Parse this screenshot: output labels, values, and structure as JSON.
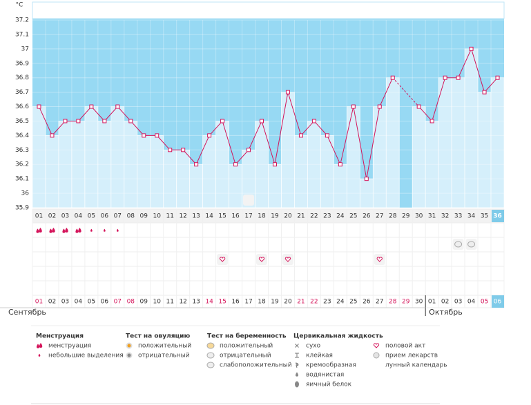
{
  "chart_data": {
    "type": "line",
    "y_unit": "°C",
    "categories": [
      "01",
      "02",
      "03",
      "04",
      "05",
      "06",
      "07",
      "08",
      "09",
      "10",
      "11",
      "12",
      "13",
      "14",
      "15",
      "16",
      "17",
      "18",
      "19",
      "20",
      "21",
      "22",
      "23",
      "24",
      "25",
      "26",
      "27",
      "28",
      "29",
      "30",
      "31",
      "32",
      "33",
      "34",
      "35",
      "36"
    ],
    "series": [
      {
        "name": "temperature",
        "color": "#d4145a",
        "values": [
          36.6,
          36.4,
          36.5,
          36.5,
          36.6,
          36.5,
          36.6,
          36.5,
          36.4,
          36.4,
          36.3,
          36.3,
          36.2,
          36.4,
          36.5,
          36.2,
          36.3,
          36.5,
          36.2,
          36.7,
          36.4,
          36.5,
          36.4,
          36.2,
          36.6,
          36.1,
          36.6,
          36.8,
          null,
          36.6,
          36.5,
          36.8,
          36.8,
          37,
          36.7,
          36.8
        ]
      }
    ],
    "ylim": [
      35.9,
      37.2
    ],
    "yticks": [
      35.9,
      36,
      36.1,
      36.2,
      36.3,
      36.4,
      36.5,
      36.6,
      36.7,
      36.8,
      36.9,
      37,
      37.1,
      37.2
    ],
    "grid": true,
    "bar_color": "#d5effb",
    "background_color": "#97d9f3",
    "highlight_last": true,
    "dates": [
      "01",
      "02",
      "03",
      "04",
      "05",
      "06",
      "07",
      "08",
      "09",
      "10",
      "11",
      "12",
      "13",
      "14",
      "15",
      "16",
      "17",
      "18",
      "19",
      "20",
      "21",
      "22",
      "23",
      "24",
      "25",
      "26",
      "27",
      "28",
      "29",
      "30",
      "01",
      "02",
      "03",
      "04",
      "05",
      "06"
    ],
    "date_colors": [
      "#d4145a",
      "#333",
      "#333",
      "#333",
      "#333",
      "#333",
      "#d4145a",
      "#d4145a",
      "#333",
      "#333",
      "#333",
      "#333",
      "#333",
      "#d4145a",
      "#d4145a",
      "#333",
      "#333",
      "#333",
      "#333",
      "#333",
      "#d4145a",
      "#d4145a",
      "#333",
      "#333",
      "#333",
      "#333",
      "#333",
      "#d4145a",
      "#d4145a",
      "#333",
      "#333",
      "#333",
      "#333",
      "#333",
      "#d4145a",
      "#d4145a"
    ],
    "months": [
      "Сентябрь",
      "Октябрь"
    ],
    "rows": {
      "menstruation": [
        "heavy",
        "heavy",
        "heavy",
        "heavy",
        "light",
        "light",
        "light",
        null,
        null,
        null,
        null,
        null,
        null,
        null,
        null,
        null,
        null,
        null,
        null,
        null,
        null,
        null,
        null,
        null,
        null,
        null,
        null,
        null,
        null,
        null,
        null,
        null,
        null,
        null,
        null,
        null
      ],
      "pregnancy": [
        null,
        null,
        null,
        null,
        null,
        null,
        null,
        null,
        null,
        null,
        null,
        null,
        null,
        null,
        null,
        null,
        null,
        null,
        null,
        null,
        null,
        null,
        null,
        null,
        null,
        null,
        null,
        null,
        null,
        null,
        null,
        null,
        "weak",
        "weak",
        null,
        null
      ],
      "sex": [
        null,
        null,
        null,
        null,
        null,
        null,
        null,
        null,
        null,
        null,
        null,
        null,
        null,
        null,
        "heart",
        null,
        null,
        "heart",
        null,
        "heart",
        null,
        null,
        null,
        null,
        null,
        null,
        "heart",
        null,
        null,
        null,
        null,
        null,
        null,
        null,
        null,
        null
      ],
      "moon": [
        null,
        null,
        null,
        null,
        null,
        null,
        null,
        null,
        null,
        null,
        null,
        null,
        null,
        null,
        null,
        null,
        "moon",
        null,
        null,
        null,
        null,
        null,
        null,
        null,
        null,
        null,
        null,
        null,
        null,
        null,
        null,
        null,
        null,
        null,
        null,
        null
      ]
    }
  },
  "legend": [
    {
      "title": "Менструация",
      "items": [
        {
          "label": "менструация",
          "icon": "heavy"
        },
        {
          "label": "небольшие выделения",
          "icon": "light"
        }
      ]
    },
    {
      "title": "Тест на овуляцию",
      "items": [
        {
          "label": "положительный",
          "icon": "ovpos"
        },
        {
          "label": "отрицательный",
          "icon": "ovneg"
        }
      ]
    },
    {
      "title": "Тест на беременность",
      "items": [
        {
          "label": "положительный",
          "icon": "prpos"
        },
        {
          "label": "отрицательный",
          "icon": "prneg"
        },
        {
          "label": "слабоположительный",
          "icon": "weak"
        }
      ]
    },
    {
      "title": "Цервикальная жидкость",
      "items": [
        {
          "label": "сухо",
          "icon": "dry"
        },
        {
          "label": "клейкая",
          "icon": "sticky"
        },
        {
          "label": "кремообразная",
          "icon": "creamy"
        },
        {
          "label": "водянистая",
          "icon": "watery"
        },
        {
          "label": "яичный белок",
          "icon": "egg"
        }
      ]
    },
    {
      "items": [
        {
          "label": "половой акт",
          "icon": "heart"
        },
        {
          "label": "прием лекарств",
          "icon": "pill"
        },
        {
          "label": "лунный календарь",
          "icon": "moon"
        }
      ]
    }
  ]
}
